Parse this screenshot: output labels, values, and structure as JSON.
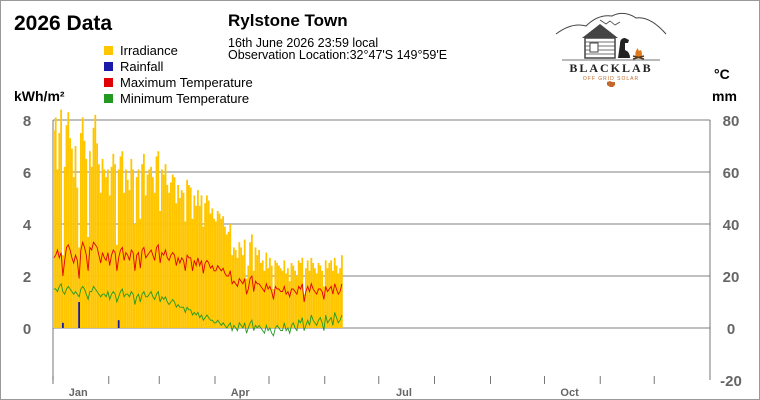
{
  "header": {
    "year_title": "2026 Data",
    "station_name": "Rylstone Town",
    "obs_time": "16th June 2026  23:59 local",
    "obs_location": "Observation Location:32°47'S 149°59'E"
  },
  "logo": {
    "brand": "BLACKLAB",
    "tagline": "OFF GRID SOLAR"
  },
  "colors": {
    "irradiance": "#FFC600",
    "rainfall": "#1A1AAA",
    "max_temp": "#E00000",
    "min_temp": "#229922",
    "grid": "#555555",
    "tick_text": "#666666"
  },
  "legend": [
    {
      "label": "Irradiance",
      "color": "#FFC600"
    },
    {
      "label": "Rainfall",
      "color": "#1A1AAA"
    },
    {
      "label": "Maximum Temperature",
      "color": "#E00000"
    },
    {
      "label": "Minimum Temperature",
      "color": "#229922"
    }
  ],
  "axes": {
    "left_title": "kWh/m²",
    "right_title_top": "°C",
    "right_title_bottom": "mm"
  },
  "chart_data": {
    "type": "bar",
    "title": "2026 Data",
    "subtitle": "Rylstone Town",
    "x_start": "2026-01-01",
    "x_end": "2026-12-31",
    "x_ticks": [
      "Jan",
      "Apr",
      "Jul",
      "Oct"
    ],
    "left_axis": {
      "label": "kWh/m²",
      "ylim": [
        0,
        8
      ],
      "ticks": [
        0,
        2,
        4,
        6,
        8
      ]
    },
    "right_axis": {
      "label": "°C / mm",
      "ylim": [
        -20,
        80
      ],
      "ticks": [
        -20,
        0,
        20,
        40,
        60,
        80
      ]
    },
    "grid": true,
    "legend_position": "top-left",
    "series": [
      {
        "name": "Irradiance",
        "axis": "left",
        "kind": "bar",
        "values": [
          7.6,
          8.1,
          6.1,
          7.5,
          8.4,
          2.8,
          6.2,
          7.8,
          8.3,
          7.3,
          6.9,
          5.8,
          7.0,
          5.4,
          3.1,
          7.5,
          8.1,
          7.2,
          6.5,
          3.5,
          6.8,
          6.2,
          7.7,
          8.2,
          7.1,
          6.3,
          5.2,
          6.5,
          6.1,
          5.8,
          6.1,
          5.1,
          6.2,
          6.7,
          6.3,
          3.2,
          6.1,
          6.6,
          6.8,
          5.2,
          6.1,
          5.7,
          5.3,
          6.5,
          6.1,
          4.0,
          5.8,
          6.1,
          4.2,
          6.3,
          6.7,
          5.1,
          5.9,
          6.1,
          6.2,
          5.8,
          5.2,
          6.6,
          6.8,
          4.5,
          6.1,
          5.9,
          6.3,
          5.5,
          5.2,
          5.6,
          5.9,
          5.8,
          4.8,
          5.5,
          5.0,
          5.3,
          5.2,
          4.1,
          5.7,
          5.5,
          5.4,
          4.2,
          5.1,
          4.7,
          5.3,
          4.7,
          5.1,
          3.9,
          4.8,
          5.1,
          4.9,
          4.4,
          4.6,
          4.2,
          4.1,
          4.5,
          4.4,
          4.2,
          4.3,
          3.9,
          3.6,
          3.7,
          4.0,
          2.8,
          3.1,
          3.0,
          2.7,
          3.3,
          3.1,
          2.8,
          3.4,
          1.9,
          2.4,
          3.3,
          3.6,
          2.2,
          3.1,
          2.8,
          3.0,
          2.5,
          2.6,
          2.2,
          2.9,
          2.3,
          2.7,
          2.4,
          1.5,
          2.6,
          2.5,
          2.4,
          2.3,
          2.2,
          2.6,
          2.1,
          2.3,
          1.8,
          2.5,
          2.4,
          2.2,
          2.0,
          2.6,
          2.5,
          2.7,
          1.3,
          2.3,
          2.6,
          2.2,
          2.7,
          2.5,
          2.3,
          2.1,
          2.5,
          2.4,
          2.2,
          1.6,
          2.6,
          2.3,
          2.5,
          2.6,
          2.2,
          2.7,
          2.4,
          2.1,
          2.3,
          2.8
        ]
      },
      {
        "name": "Rainfall",
        "axis": "right",
        "kind": "bar",
        "values": [
          0,
          0,
          0,
          0,
          0,
          2,
          0,
          0,
          0,
          0,
          0,
          0,
          0,
          0,
          10,
          0,
          0,
          0,
          0,
          0,
          0,
          0,
          0,
          0,
          0,
          0,
          0,
          0,
          0,
          0,
          0,
          0,
          0,
          0,
          0,
          0,
          3,
          0,
          0,
          0,
          0,
          0,
          0,
          0,
          0,
          0,
          0,
          0,
          0,
          0,
          0,
          0,
          0,
          0,
          0,
          0,
          0,
          0,
          0,
          0,
          0,
          0,
          0,
          0,
          0,
          0,
          0,
          0,
          0,
          0,
          0,
          0,
          0,
          0,
          0,
          0,
          0,
          0,
          0,
          0,
          0,
          0,
          0,
          0,
          0,
          0,
          0,
          0,
          0,
          0,
          0,
          0,
          0,
          0,
          0,
          0,
          0,
          0,
          0,
          0,
          0,
          0,
          0,
          0,
          0,
          0,
          0,
          0,
          0,
          0,
          0,
          0,
          0,
          0,
          0,
          0,
          0,
          0,
          0,
          0,
          0,
          0,
          0,
          0,
          0,
          0,
          0,
          0,
          0,
          0,
          0,
          0,
          0,
          0,
          0,
          0,
          0,
          0,
          0,
          0,
          0,
          0,
          0,
          0,
          0,
          0,
          0,
          0,
          0,
          0,
          0,
          0,
          0,
          0,
          0,
          0,
          0,
          0,
          0,
          0,
          0,
          0,
          0,
          0,
          0,
          0,
          0
        ]
      },
      {
        "name": "Maximum Temperature",
        "axis": "right",
        "kind": "line",
        "values": [
          27,
          28,
          30,
          27,
          29,
          20,
          26,
          31,
          32,
          30,
          27,
          25,
          28,
          26,
          19,
          30,
          33,
          31,
          28,
          22,
          31,
          30,
          33,
          32,
          31,
          28,
          25,
          29,
          27,
          26,
          29,
          24,
          28,
          30,
          29,
          22,
          27,
          30,
          31,
          26,
          29,
          28,
          26,
          30,
          29,
          22,
          28,
          29,
          23,
          30,
          31,
          27,
          28,
          29,
          30,
          28,
          26,
          31,
          32,
          25,
          29,
          28,
          30,
          27,
          26,
          28,
          29,
          28,
          24,
          27,
          25,
          27,
          26,
          22,
          28,
          27,
          27,
          22,
          26,
          24,
          27,
          24,
          26,
          21,
          25,
          26,
          25,
          23,
          24,
          22,
          22,
          24,
          23,
          22,
          23,
          21,
          20,
          20,
          22,
          17,
          18,
          17,
          16,
          19,
          18,
          17,
          19,
          13,
          15,
          19,
          20,
          14,
          18,
          17,
          17,
          16,
          15,
          14,
          17,
          15,
          16,
          14,
          11,
          16,
          15,
          15,
          14,
          14,
          16,
          13,
          14,
          12,
          15,
          15,
          14,
          13,
          16,
          15,
          17,
          10,
          14,
          16,
          14,
          17,
          15,
          14,
          13,
          15,
          15,
          14,
          11,
          16,
          14,
          15,
          16,
          13,
          17,
          15,
          13,
          14,
          17
        ]
      },
      {
        "name": "Minimum Temperature",
        "axis": "right",
        "kind": "line",
        "values": [
          15,
          15,
          14,
          16,
          17,
          14,
          13,
          15,
          16,
          15,
          14,
          13,
          14,
          13,
          12,
          15,
          16,
          15,
          13,
          11,
          14,
          14,
          16,
          15,
          14,
          13,
          12,
          13,
          13,
          12,
          14,
          11,
          13,
          14,
          13,
          10,
          12,
          14,
          15,
          12,
          13,
          13,
          12,
          14,
          13,
          9,
          12,
          13,
          10,
          13,
          14,
          12,
          12,
          13,
          14,
          12,
          11,
          13,
          14,
          10,
          12,
          11,
          12,
          10,
          9,
          10,
          11,
          10,
          8,
          9,
          8,
          8,
          8,
          6,
          8,
          7,
          7,
          5,
          6,
          5,
          6,
          4,
          5,
          3,
          4,
          5,
          4,
          3,
          3,
          2,
          2,
          3,
          2,
          1,
          2,
          1,
          0,
          1,
          2,
          -1,
          1,
          0,
          -1,
          2,
          1,
          0,
          2,
          -2,
          0,
          2,
          3,
          -1,
          1,
          0,
          1,
          0,
          -1,
          -2,
          1,
          -1,
          0,
          -2,
          -3,
          0,
          1,
          0,
          -1,
          -1,
          2,
          -1,
          0,
          -2,
          1,
          2,
          0,
          -1,
          3,
          2,
          4,
          -1,
          1,
          3,
          1,
          5,
          3,
          2,
          1,
          3,
          4,
          2,
          -1,
          5,
          2,
          3,
          4,
          1,
          6,
          4,
          2,
          3,
          5
        ]
      }
    ]
  }
}
